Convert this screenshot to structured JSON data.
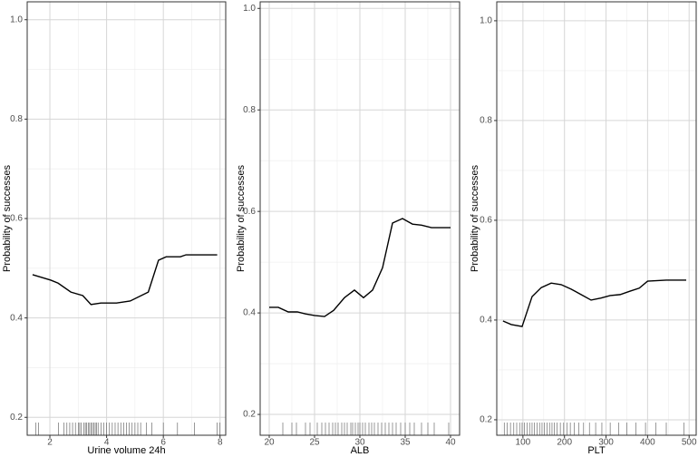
{
  "chart_data": [
    {
      "type": "line",
      "x_label": "Urine volume 24h",
      "y_label": "Probability of successes",
      "color": "#000000",
      "grid": true,
      "x": [
        1.39,
        2.03,
        2.29,
        2.74,
        3.16,
        3.45,
        3.8,
        4.35,
        4.83,
        5.47,
        5.83,
        6.1,
        6.6,
        6.8,
        7.9
      ],
      "values": [
        0.487,
        0.476,
        0.47,
        0.452,
        0.445,
        0.427,
        0.43,
        0.43,
        0.434,
        0.452,
        0.516,
        0.523,
        0.523,
        0.527,
        0.527
      ],
      "xlim": [
        1.2,
        8.2
      ],
      "xticks": [
        2,
        4,
        6,
        8
      ],
      "ylim": [
        0.164,
        1.036
      ],
      "yticks": [
        0.2,
        0.4,
        0.6,
        0.8,
        {
          "value": 1.0,
          "label": "1.0"
        }
      ],
      "rug": [
        1.5,
        1.6,
        2.3,
        2.5,
        2.6,
        2.7,
        2.8,
        2.9,
        3.0,
        3.05,
        3.1,
        3.2,
        3.25,
        3.3,
        3.35,
        3.4,
        3.45,
        3.5,
        3.55,
        3.6,
        3.65,
        3.7,
        3.8,
        3.9,
        4.0,
        4.1,
        4.2,
        4.3,
        4.4,
        4.5,
        4.6,
        4.7,
        4.8,
        4.9,
        5.0,
        5.1,
        5.2,
        5.4,
        5.6,
        6.0,
        6.5,
        7.1,
        7.9,
        8.0
      ]
    },
    {
      "type": "line",
      "x_label": "ALB",
      "y_label": "Probability of successes",
      "color": "#000000",
      "grid": true,
      "x": [
        20,
        21,
        22.1,
        23.1,
        24,
        25,
        26.1,
        27.1,
        28.3,
        29.4,
        30.4,
        31.4,
        32.5,
        33.6,
        34.7,
        35.8,
        36.8,
        37.9,
        40
      ],
      "values": [
        0.411,
        0.411,
        0.402,
        0.402,
        0.398,
        0.395,
        0.393,
        0.405,
        0.43,
        0.445,
        0.43,
        0.445,
        0.489,
        0.577,
        0.586,
        0.575,
        0.573,
        0.568,
        0.568
      ],
      "xlim": [
        19,
        41
      ],
      "xticks": [
        20,
        25,
        30,
        35,
        40
      ],
      "ylim": [
        0.159,
        1.013
      ],
      "yticks": [
        0.2,
        0.4,
        0.6,
        0.8,
        {
          "value": 1.0,
          "label": "1.0"
        }
      ],
      "rug": [
        21.5,
        22.5,
        23,
        24,
        24.5,
        25.3,
        25.8,
        26.2,
        26.6,
        27,
        27.3,
        27.6,
        28,
        28.3,
        28.6,
        29,
        29.2,
        29.5,
        29.8,
        30,
        30.3,
        30.6,
        31,
        31.3,
        31.6,
        32,
        32.4,
        32.8,
        33.2,
        33.6,
        34,
        34.5,
        35,
        35.5,
        36,
        36.8,
        37.5,
        38.2,
        39.8
      ]
    },
    {
      "type": "line",
      "x_label": "PLT",
      "y_label": "Probability of successes",
      "color": "#000000",
      "grid": true,
      "x": [
        52,
        72,
        98,
        122,
        144,
        168,
        192,
        216,
        240,
        264,
        288,
        310,
        334,
        358,
        380,
        400,
        445,
        493
      ],
      "values": [
        0.398,
        0.391,
        0.387,
        0.447,
        0.465,
        0.474,
        0.471,
        0.462,
        0.451,
        0.44,
        0.444,
        0.449,
        0.451,
        0.458,
        0.464,
        0.478,
        0.48,
        0.48
      ],
      "xlim": [
        37,
        517
      ],
      "xticks": [
        100,
        200,
        300,
        400,
        500
      ],
      "ylim": [
        0.169,
        1.038
      ],
      "yticks": [
        0.2,
        0.4,
        0.6,
        0.8,
        {
          "value": 1.0,
          "label": "1.0"
        }
      ],
      "rug": [
        55,
        62,
        70,
        78,
        85,
        92,
        98,
        104,
        110,
        116,
        122,
        128,
        134,
        140,
        146,
        152,
        158,
        164,
        170,
        176,
        182,
        190,
        198,
        206,
        214,
        224,
        234,
        246,
        260,
        275,
        290,
        310,
        330,
        350,
        372,
        395,
        420,
        445,
        488
      ]
    }
  ]
}
